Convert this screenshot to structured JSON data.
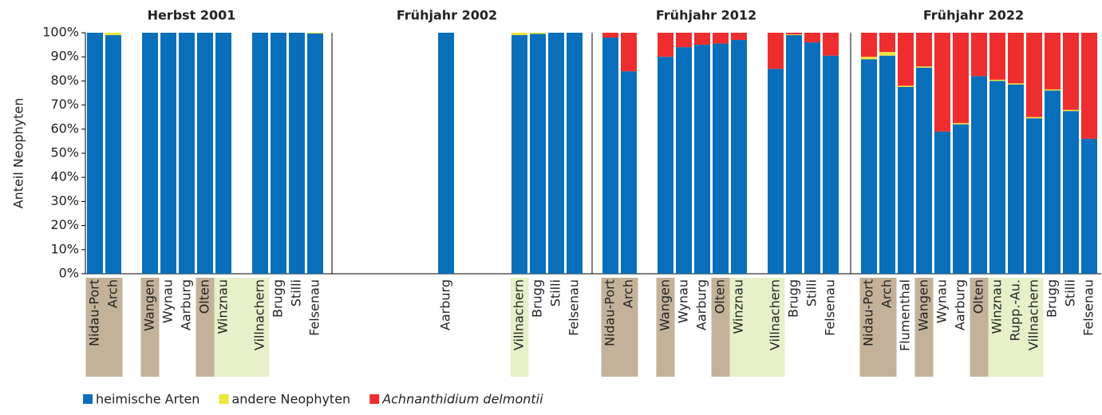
{
  "chart_data": {
    "type": "bar",
    "stacked": true,
    "ylabel": "Anteil Neophyten",
    "ylim": [
      0,
      100
    ],
    "yticks": [
      {
        "value": 0,
        "label": "0%"
      },
      {
        "value": 10,
        "label": "10%"
      },
      {
        "value": 20,
        "label": "20%"
      },
      {
        "value": 30,
        "label": "30%"
      },
      {
        "value": 40,
        "label": "40%"
      },
      {
        "value": 50,
        "label": "50%"
      },
      {
        "value": 60,
        "label": "60%"
      },
      {
        "value": 70,
        "label": "70%"
      },
      {
        "value": 80,
        "label": "80%"
      },
      {
        "value": 90,
        "label": "90%"
      },
      {
        "value": 100,
        "label": "100%"
      }
    ],
    "legend": [
      {
        "name": "heimische Arten",
        "color": "#0a6fbb"
      },
      {
        "name": "andere Neophyten",
        "color": "#ece63a"
      },
      {
        "name": "Achnanthidium delmontii",
        "color": "#ee2e2e"
      }
    ],
    "panels": [
      {
        "title": "Herbst 2001",
        "categories": [
          "Nidau-Port",
          "Arch",
          null,
          "Wangen",
          "Wynau",
          "Aarburg",
          "Olten",
          "Winznau",
          null,
          "Villnachern",
          "Brugg",
          "Stilli",
          "Felsenau"
        ],
        "label_colors": [
          "#c3b299",
          "#c3b299",
          null,
          "#c3b299",
          null,
          null,
          "#c3b299",
          "#e7f0c9",
          "#e7f0c9",
          "#e7f0c9",
          null,
          null,
          null
        ],
        "series": [
          {
            "values": [
              100,
              99,
              null,
              100,
              100,
              100,
              100,
              100,
              null,
              100,
              100,
              100,
              99.7
            ]
          },
          {
            "values": [
              0,
              1,
              null,
              0,
              0,
              0,
              0,
              0,
              null,
              0,
              0,
              0,
              0.3
            ]
          },
          {
            "values": [
              0,
              0,
              null,
              0,
              0,
              0,
              0,
              0,
              null,
              0,
              0,
              0,
              0
            ]
          }
        ]
      },
      {
        "title": "Frühjahr 2002",
        "categories": [
          null,
          null,
          null,
          null,
          null,
          "Aarburg",
          null,
          null,
          null,
          "Villnachern",
          "Brugg",
          "Stilli",
          "Felsenau"
        ],
        "label_colors": [
          null,
          null,
          null,
          null,
          null,
          null,
          null,
          null,
          null,
          "#e7f0c9",
          null,
          null,
          null
        ],
        "series": [
          {
            "values": [
              null,
              null,
              null,
              null,
              null,
              100,
              null,
              null,
              null,
              99,
              99.5,
              100,
              100
            ]
          },
          {
            "values": [
              null,
              null,
              null,
              null,
              null,
              0,
              null,
              null,
              null,
              1,
              0.5,
              0,
              0
            ]
          },
          {
            "values": [
              null,
              null,
              null,
              null,
              null,
              0,
              null,
              null,
              null,
              0,
              0,
              0,
              0
            ]
          }
        ]
      },
      {
        "title": "Frühjahr 2012",
        "categories": [
          "Nidau-Port",
          "Arch",
          null,
          "Wangen",
          "Wynau",
          "Aarburg",
          "Olten",
          "Winznau",
          null,
          "Villnachern",
          "Brugg",
          "Stilli",
          "Felsenau"
        ],
        "label_colors": [
          "#c3b299",
          "#c3b299",
          null,
          "#c3b299",
          null,
          null,
          "#c3b299",
          "#e7f0c9",
          "#e7f0c9",
          "#e7f0c9",
          null,
          null,
          null
        ],
        "series": [
          {
            "values": [
              98,
              84,
              null,
              90,
              94,
              95,
              95.5,
              97,
              null,
              85,
              99,
              96,
              90.5
            ]
          },
          {
            "values": [
              0,
              0,
              null,
              0,
              0,
              0,
              0,
              0,
              null,
              0,
              0.3,
              0,
              0
            ]
          },
          {
            "values": [
              2,
              16,
              null,
              10,
              6,
              5,
              4.5,
              3,
              null,
              15,
              0.7,
              4,
              9.5
            ]
          }
        ]
      },
      {
        "title": "Frühjahr 2022",
        "categories": [
          "Nidau-Port",
          "Arch",
          "Flumenthal",
          "Wangen",
          "Wynau",
          "Aarburg",
          "Olten",
          "Winznau",
          "Rupp.-Au.",
          "Villnachern",
          "Brugg",
          "Stilli",
          "Felsenau"
        ],
        "label_colors": [
          "#c3b299",
          "#c3b299",
          null,
          "#c3b299",
          null,
          null,
          "#c3b299",
          "#e7f0c9",
          "#e7f0c9",
          "#e7f0c9",
          null,
          null,
          null
        ],
        "series": [
          {
            "values": [
              89,
              90.5,
              77.5,
              85.5,
              59,
              62,
              82,
              80,
              78.5,
              64.5,
              76,
              67.5,
              56
            ]
          },
          {
            "values": [
              1,
              1.5,
              0.5,
              0.5,
              0,
              0.5,
              0,
              0.5,
              0.5,
              0.5,
              0.5,
              0.5,
              0
            ]
          },
          {
            "values": [
              10,
              8,
              22,
              14,
              41,
              37.5,
              18,
              19.5,
              21,
              35,
              23.5,
              32,
              44
            ]
          }
        ]
      }
    ]
  }
}
